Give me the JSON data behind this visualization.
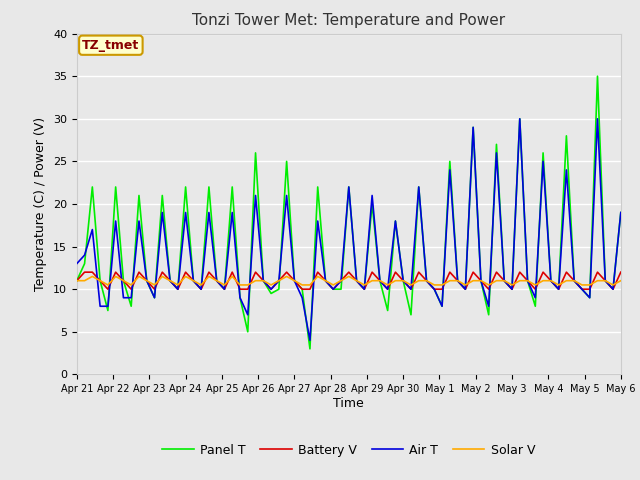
{
  "title": "Tonzi Tower Met: Temperature and Power",
  "xlabel": "Time",
  "ylabel": "Temperature (C) / Power (V)",
  "ylim": [
    0,
    40
  ],
  "background_color": "#e8e8e8",
  "plot_bg_color": "#e8e8e8",
  "grid_color": "#ffffff",
  "annotation_text": "TZ_tmet",
  "annotation_fg": "#880000",
  "annotation_bg": "#ffffcc",
  "annotation_border": "#cc9900",
  "x_tick_labels": [
    "Apr 21",
    "Apr 22",
    "Apr 23",
    "Apr 24",
    "Apr 25",
    "Apr 26",
    "Apr 27",
    "Apr 28",
    "Apr 29",
    "Apr 30",
    "May 1",
    "May 2",
    "May 3",
    "May 4",
    "May 5",
    "May 6"
  ],
  "legend_labels": [
    "Panel T",
    "Battery V",
    "Air T",
    "Solar V"
  ],
  "line_colors": [
    "#00ee00",
    "#dd0000",
    "#0000dd",
    "#ffaa00"
  ],
  "panel_t": [
    11,
    13,
    22,
    11,
    7.5,
    22,
    11,
    8,
    21,
    11,
    9,
    21,
    11,
    10,
    22,
    11,
    10,
    22,
    11,
    10,
    22,
    9,
    5,
    26,
    11,
    9.5,
    10,
    25,
    11,
    10,
    3,
    22,
    11,
    10,
    10,
    22,
    11,
    10,
    20,
    11,
    7.5,
    18,
    11,
    7,
    22,
    11,
    10,
    8,
    25,
    11,
    10,
    29,
    11,
    7,
    27,
    11,
    10,
    30,
    11,
    8,
    26,
    11,
    10,
    28,
    11,
    10,
    9,
    35,
    11,
    10,
    19
  ],
  "battery_v": [
    11,
    12,
    12,
    11,
    10,
    12,
    11,
    10,
    12,
    11,
    10,
    12,
    11,
    10,
    12,
    11,
    10,
    12,
    11,
    10,
    12,
    10,
    10,
    12,
    11,
    10,
    11,
    12,
    11,
    10,
    10,
    12,
    11,
    10,
    11,
    12,
    11,
    10,
    12,
    11,
    10,
    12,
    11,
    10,
    12,
    11,
    10,
    10,
    12,
    11,
    10,
    12,
    11,
    10,
    12,
    11,
    10,
    12,
    11,
    10,
    12,
    11,
    10,
    12,
    11,
    10,
    10,
    12,
    11,
    10,
    12
  ],
  "air_t": [
    13,
    14,
    17,
    8,
    8,
    18,
    9,
    9,
    18,
    11,
    9,
    19,
    11,
    10,
    19,
    11,
    10,
    19,
    11,
    10,
    19,
    9,
    7,
    21,
    11,
    10,
    11,
    21,
    11,
    9,
    4,
    18,
    11,
    10,
    11,
    22,
    11,
    10,
    21,
    11,
    10,
    18,
    11,
    10,
    22,
    11,
    10,
    8,
    24,
    11,
    10,
    29,
    11,
    8,
    26,
    11,
    10,
    30,
    11,
    9,
    25,
    11,
    10,
    24,
    11,
    10,
    9,
    30,
    11,
    10,
    19
  ],
  "solar_v": [
    11,
    11,
    11.5,
    11,
    10.5,
    11.5,
    11,
    10.5,
    11.5,
    11,
    10.5,
    11.5,
    11,
    10.5,
    11.5,
    11,
    10.5,
    11.5,
    11,
    10.5,
    11.5,
    10.5,
    10.5,
    11,
    11,
    10.5,
    11,
    11.5,
    11,
    10.5,
    10.5,
    11.5,
    11,
    10.5,
    11,
    11.5,
    11,
    10.5,
    11,
    11,
    10.5,
    11,
    11,
    10.5,
    11,
    11,
    10.5,
    10.5,
    11,
    11,
    10.5,
    11,
    11,
    10.5,
    11,
    11,
    10.5,
    11,
    11,
    10.5,
    11,
    11,
    10.5,
    11,
    11,
    10.5,
    10.5,
    11,
    11,
    10.5,
    11
  ],
  "yticks": [
    0,
    5,
    10,
    15,
    20,
    25,
    30,
    35,
    40
  ],
  "figsize": [
    6.4,
    4.8
  ],
  "dpi": 100
}
